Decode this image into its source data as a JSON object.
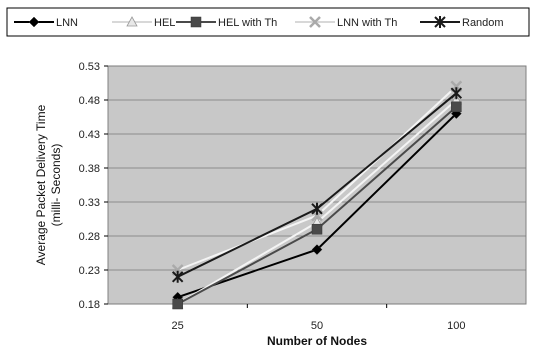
{
  "chart_data": {
    "type": "line",
    "xlabel": "Number of Nodes",
    "ylabel_lines": [
      "Average Packet Delivery Time",
      "(milli- Seconds)"
    ],
    "categories": [
      "25",
      "50",
      "100"
    ],
    "y_ticks": [
      "0.18",
      "0.23",
      "0.28",
      "0.33",
      "0.38",
      "0.43",
      "0.48",
      "0.53"
    ],
    "ylim": [
      0.18,
      0.53
    ],
    "grid": true,
    "plot_background": "#c8c8c8",
    "legend_position": "top",
    "series": [
      {
        "name": "LNN",
        "color": "#000000",
        "marker": "diamond",
        "values": [
          0.19,
          0.26,
          0.46
        ]
      },
      {
        "name": "HEL",
        "color": "#e8e8e8",
        "marker": "triangle",
        "values": [
          0.18,
          0.3,
          0.48
        ]
      },
      {
        "name": "HEL with Th",
        "color": "#4a4a4a",
        "marker": "square",
        "values": [
          0.18,
          0.29,
          0.47
        ]
      },
      {
        "name": "LNN with Th",
        "color": "#f2f2f2",
        "marker": "x",
        "values": [
          0.23,
          0.31,
          0.5
        ]
      },
      {
        "name": "Random",
        "color": "#1a1a1a",
        "marker": "star",
        "values": [
          0.22,
          0.32,
          0.49
        ]
      }
    ]
  }
}
